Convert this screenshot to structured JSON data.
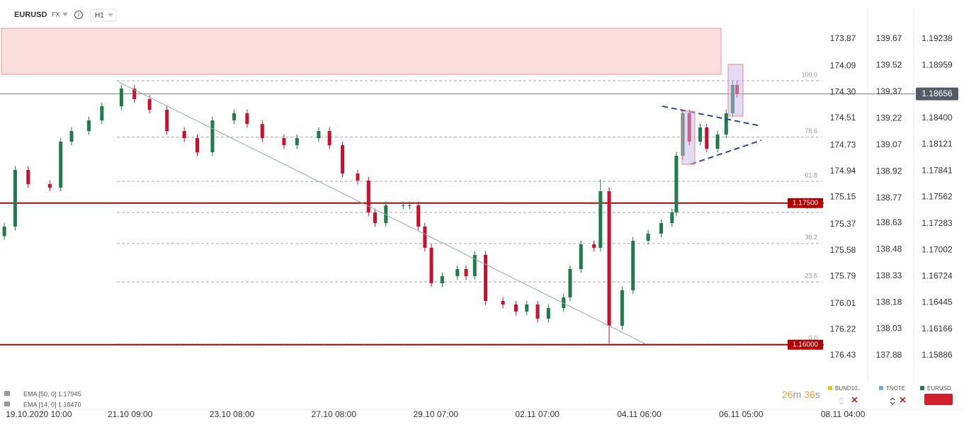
{
  "chart_data": {
    "type": "candlestick",
    "symbol": "EURUSD",
    "market": "FX",
    "timeframe": "H1",
    "x": [
      0,
      5,
      11,
      21,
      26,
      31,
      39,
      45,
      54,
      60,
      67,
      75,
      83,
      89,
      96,
      106,
      112,
      119,
      129,
      135,
      145,
      150,
      156,
      163,
      168,
      171,
      176,
      184,
      187,
      191,
      194,
      197,
      202,
      209,
      213,
      217,
      222,
      230,
      236,
      241,
      246,
      251,
      258,
      261,
      266,
      272,
      275,
      279,
      285,
      290,
      297,
      303,
      308,
      310,
      313,
      316,
      321,
      324,
      329,
      333,
      336,
      338
    ],
    "open": [
      1.1715,
      1.17251,
      1.17851,
      1.17701,
      1.17663,
      1.18151,
      1.18263,
      1.18376,
      1.18526,
      1.18713,
      1.18601,
      1.18488,
      1.18263,
      1.18188,
      1.18038,
      1.18376,
      1.18451,
      1.18338,
      1.18188,
      1.18113,
      1.18188,
      1.18263,
      1.18113,
      1.17813,
      1.17738,
      1.17401,
      1.17288,
      1.17476,
      1.17476,
      1.17476,
      1.17251,
      1.17026,
      1.16651,
      1.16726,
      1.16801,
      1.16726,
      1.16951,
      1.16463,
      1.16426,
      1.16351,
      1.16426,
      1.16276,
      1.16388,
      1.16501,
      1.16801,
      1.17063,
      1.17026,
      1.17626,
      1.16201,
      1.16576,
      1.17101,
      1.17176,
      1.17288,
      1.17401,
      1.18001,
      1.18451,
      1.18151,
      1.18301,
      1.18076,
      1.18226,
      1.18451,
      1.18751
    ],
    "high": [
      1.17291,
      1.17891,
      1.17891,
      1.17741,
      1.18191,
      1.18303,
      1.18416,
      1.18566,
      1.18753,
      1.18753,
      1.18641,
      1.18528,
      1.18303,
      1.18228,
      1.18416,
      1.18491,
      1.18491,
      1.18378,
      1.18228,
      1.18228,
      1.18303,
      1.18303,
      1.18153,
      1.17853,
      1.17778,
      1.17441,
      1.17516,
      1.17516,
      1.17516,
      1.17516,
      1.17291,
      1.17066,
      1.16766,
      1.16841,
      1.16841,
      1.16991,
      1.16991,
      1.16503,
      1.16466,
      1.16466,
      1.16466,
      1.16428,
      1.16541,
      1.16841,
      1.17103,
      1.17103,
      1.17751,
      1.17666,
      1.16616,
      1.17141,
      1.17216,
      1.17328,
      1.17441,
      1.18041,
      1.18491,
      1.18491,
      1.18341,
      1.18341,
      1.18266,
      1.18491,
      1.18801,
      1.18791
    ],
    "low": [
      1.1711,
      1.17211,
      1.17661,
      1.17623,
      1.17623,
      1.18111,
      1.18223,
      1.18336,
      1.18486,
      1.18561,
      1.18448,
      1.18223,
      1.18148,
      1.17998,
      1.17998,
      1.18336,
      1.18298,
      1.18148,
      1.18073,
      1.18073,
      1.18148,
      1.18073,
      1.17773,
      1.17698,
      1.17361,
      1.17248,
      1.17248,
      1.17436,
      1.17436,
      1.17211,
      1.16986,
      1.16611,
      1.16611,
      1.16686,
      1.16686,
      1.16686,
      1.16423,
      1.16386,
      1.16311,
      1.16311,
      1.16236,
      1.16236,
      1.16348,
      1.16461,
      1.16761,
      1.16986,
      1.16986,
      1.16013,
      1.16161,
      1.16536,
      1.17061,
      1.17136,
      1.17248,
      1.17361,
      1.17961,
      1.18111,
      1.18111,
      1.18036,
      1.18036,
      1.18186,
      1.18411,
      1.18616
    ],
    "close": [
      1.17251,
      1.17851,
      1.17701,
      1.17663,
      1.18151,
      1.18263,
      1.18376,
      1.18526,
      1.18713,
      1.18601,
      1.18488,
      1.18263,
      1.18188,
      1.18038,
      1.18376,
      1.18451,
      1.18338,
      1.18188,
      1.18113,
      1.18188,
      1.18263,
      1.18113,
      1.17813,
      1.17738,
      1.17401,
      1.17288,
      1.17476,
      1.17476,
      1.17476,
      1.17251,
      1.17026,
      1.16651,
      1.16726,
      1.16801,
      1.16726,
      1.16951,
      1.16463,
      1.16426,
      1.16351,
      1.16426,
      1.16276,
      1.16388,
      1.16501,
      1.16801,
      1.17063,
      1.17026,
      1.17626,
      1.16201,
      1.16576,
      1.17101,
      1.17176,
      1.17288,
      1.17401,
      1.18001,
      1.18451,
      1.18151,
      1.18301,
      1.18076,
      1.18226,
      1.18451,
      1.18751,
      1.18656
    ],
    "up_color": "#1f7a4c",
    "down_color": "#c8102e",
    "xlim": [
      -2,
      378
    ],
    "xticks": [
      {
        "value": 0,
        "label": "19.10.2020 10:00"
      },
      {
        "value": 47,
        "label": "21.10 09:00"
      },
      {
        "value": 94,
        "label": "23.10 08:00"
      },
      {
        "value": 141,
        "label": "27.10 08:00"
      },
      {
        "value": 188,
        "label": "29.10 07:00"
      },
      {
        "value": 235,
        "label": "02.11 07:00"
      },
      {
        "value": 282,
        "label": "04.11 06:00"
      },
      {
        "value": 329,
        "label": "06.11 05:00"
      },
      {
        "value": 376,
        "label": "08.11 04:00"
      }
    ],
    "ylim": [
      1.15563,
      1.19651
    ],
    "yticks": [
      1.19238,
      1.18959,
      {
        "value": 1.184,
        "label": "1.18400"
      },
      1.18121,
      1.17841,
      1.17562,
      1.17283,
      1.17002,
      1.16724,
      1.16445,
      1.16166,
      1.15886
    ],
    "y2lim": [
      176.676,
      173.555
    ],
    "y2ticks": [
      173.87,
      174.09,
      {
        "value": 174.3,
        "label": "174.30"
      },
      174.51,
      174.73,
      174.94,
      175.15,
      175.37,
      175.58,
      175.79,
      176.01,
      176.22,
      176.43
    ],
    "y3lim": [
      137.708,
      139.89
    ],
    "y3ticks": [
      139.67,
      139.52,
      139.37,
      139.22,
      139.07,
      138.92,
      138.77,
      138.63,
      138.48,
      138.33,
      138.18,
      138.03,
      137.88
    ],
    "current_price": {
      "value": 1.18656,
      "label": "1.18656"
    },
    "levels": [
      {
        "value": 1.175,
        "label": "1.17500"
      },
      {
        "value": 1.16,
        "label": "1.16000"
      }
    ],
    "level_color": "#b30000",
    "supply_zone": [
      1.18863,
      1.19351
    ],
    "fibonacci": {
      "range": [
        1.16006,
        1.18796
      ],
      "levels": [
        {
          "value": 100,
          "label": "100.0"
        },
        {
          "value": 78.6,
          "label": "78.6"
        },
        {
          "value": 61.8,
          "label": "61.8"
        },
        {
          "value": 50,
          "label": "50.0"
        },
        {
          "value": 38.2,
          "label": "38.2"
        },
        {
          "value": 23.6,
          "label": "23.6"
        },
        {
          "value": 0,
          "label": "0.0"
        }
      ]
    },
    "indicators": [
      "EMA [50, 0] 1.17945",
      "EMA [14, 0] 1.18470"
    ],
    "timer": {
      "minutes": 26,
      "minutes_unit": "m",
      "seconds": 36,
      "seconds_unit": "s"
    },
    "instruments": [
      "BUND10..",
      "TNOTE",
      "EURUSD"
    ]
  }
}
